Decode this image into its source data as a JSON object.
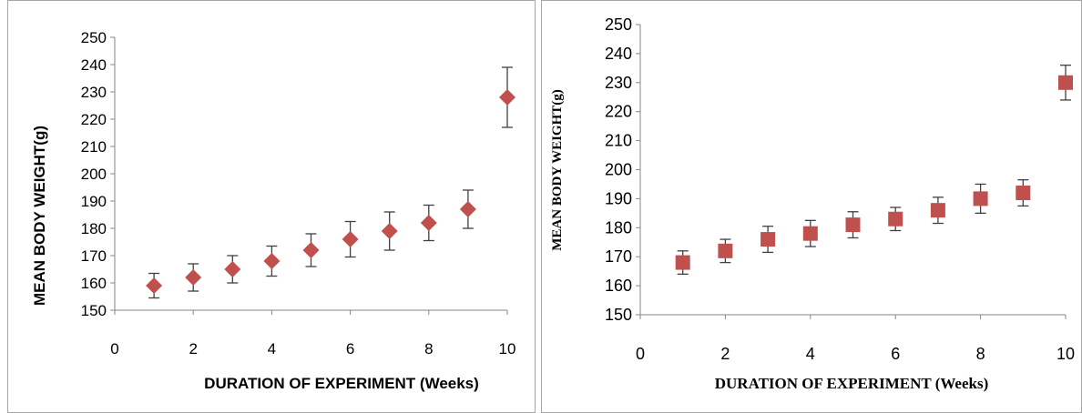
{
  "chart_data": [
    {
      "type": "scatter",
      "xlabel": "DURATION OF EXPERIMENT (Weeks)",
      "ylabel": "MEAN BODY WEIGHT(g)",
      "xlim": [
        0,
        10
      ],
      "ylim": [
        150,
        250
      ],
      "xticks": [
        0,
        2,
        4,
        6,
        8,
        10
      ],
      "yticks": [
        150,
        160,
        170,
        180,
        190,
        200,
        210,
        220,
        230,
        240,
        250
      ],
      "grid": false,
      "marker": "diamond",
      "color": "#c0504d",
      "x": [
        1,
        2,
        3,
        4,
        5,
        6,
        7,
        8,
        9,
        10
      ],
      "y": [
        159,
        162,
        165,
        168,
        172,
        176,
        179,
        182,
        187,
        228
      ],
      "error": [
        4.5,
        5,
        5,
        5.5,
        6,
        6.5,
        7,
        6.5,
        7,
        11
      ]
    },
    {
      "type": "scatter",
      "xlabel": "DURATION  OF EXPERIMENT (Weeks)",
      "ylabel": "MEAN BODY WEIGHT(g)",
      "xlim": [
        0,
        10
      ],
      "ylim": [
        150,
        250
      ],
      "xticks": [
        0,
        2,
        4,
        6,
        8,
        10
      ],
      "yticks": [
        150,
        160,
        170,
        180,
        190,
        200,
        210,
        220,
        230,
        240,
        250
      ],
      "grid": false,
      "marker": "square",
      "color": "#c0504d",
      "x": [
        1,
        2,
        3,
        4,
        5,
        6,
        7,
        8,
        9,
        10
      ],
      "y": [
        168,
        172,
        176,
        178,
        181,
        183,
        186,
        190,
        192,
        230
      ],
      "error": [
        4,
        4,
        4.5,
        4.5,
        4.5,
        4,
        4.5,
        5,
        4.5,
        6
      ]
    }
  ]
}
